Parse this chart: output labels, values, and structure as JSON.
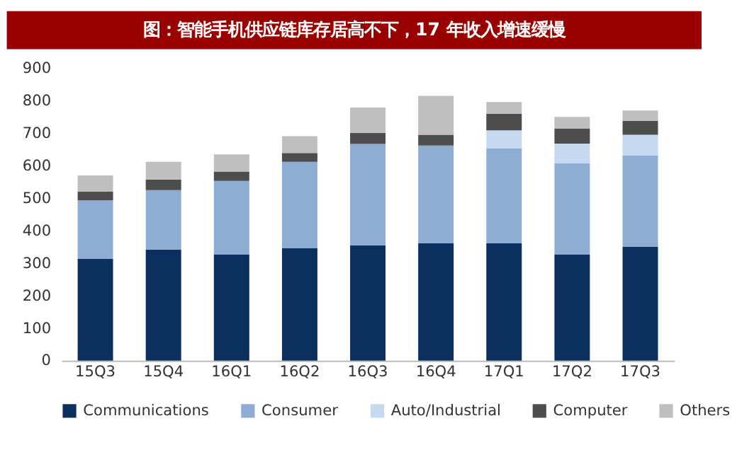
{
  "chart_data": {
    "type": "bar",
    "title": "图：智能手机供应链库存居高不下，17 年收入增速缓慢",
    "stacked": true,
    "categories": [
      "15Q3",
      "15Q4",
      "16Q1",
      "16Q2",
      "16Q3",
      "16Q4",
      "17Q1",
      "17Q2",
      "17Q3"
    ],
    "series": [
      {
        "name": "Communications",
        "color": "#0b2f5e",
        "values": [
          313,
          342,
          327,
          346,
          355,
          361,
          361,
          327,
          350
        ]
      },
      {
        "name": "Consumer",
        "color": "#8eacd4",
        "values": [
          180,
          183,
          226,
          266,
          312,
          301,
          293,
          281,
          282
        ]
      },
      {
        "name": "Auto/Industrial",
        "color": "#c5d9f1",
        "values": [
          0,
          0,
          0,
          0,
          0,
          0,
          55,
          60,
          63
        ]
      },
      {
        "name": "Computer",
        "color": "#4d4d4d",
        "values": [
          27,
          32,
          29,
          27,
          34,
          33,
          51,
          47,
          43
        ]
      },
      {
        "name": "Others",
        "color": "#bfbfbf",
        "values": [
          50,
          55,
          53,
          52,
          78,
          120,
          36,
          35,
          32
        ]
      }
    ],
    "ylim": [
      0,
      900
    ],
    "yticks": [
      0,
      100,
      200,
      300,
      400,
      500,
      600,
      700,
      800,
      900
    ],
    "grid": false,
    "legend": "bottom"
  }
}
